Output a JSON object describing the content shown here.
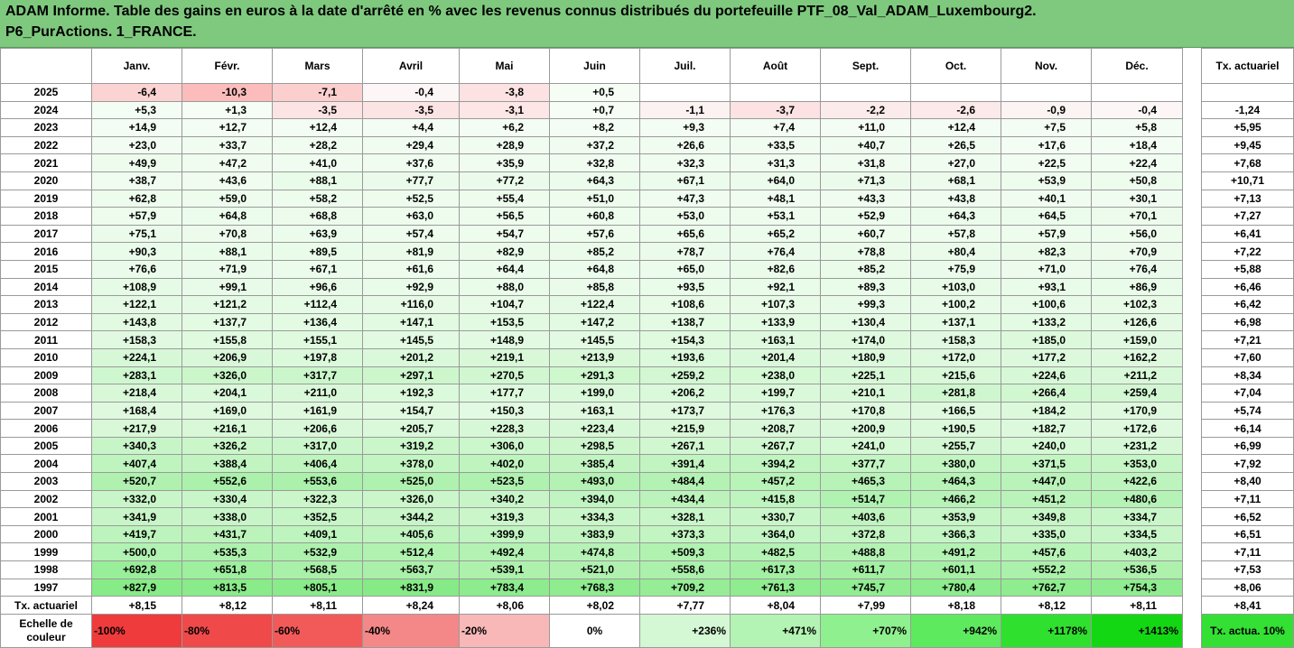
{
  "title": {
    "line1": "ADAM Informe. Table des gains en euros à la date d'arrêté en % avec les revenus connus distribués du portefeuille PTF_08_Val_ADAM_Luxembourg2.",
    "line2": "P6_PurActions. 1_FRANCE."
  },
  "months": [
    "Janv.",
    "Févr.",
    "Mars",
    "Avril",
    "Mai",
    "Juin",
    "Juil.",
    "Août",
    "Sept.",
    "Oct.",
    "Nov.",
    "Déc."
  ],
  "right_header": "Tx. actuariel",
  "rows": [
    {
      "year": "2025",
      "v": [
        "-6,4",
        "-10,3",
        "-7,1",
        "-0,4",
        "-3,8",
        "+0,5",
        "",
        "",
        "",
        "",
        "",
        ""
      ],
      "tx": ""
    },
    {
      "year": "2024",
      "v": [
        "+5,3",
        "+1,3",
        "-3,5",
        "-3,5",
        "-3,1",
        "+0,7",
        "-1,1",
        "-3,7",
        "-2,2",
        "-2,6",
        "-0,9",
        "-0,4"
      ],
      "tx": "-1,24"
    },
    {
      "year": "2023",
      "v": [
        "+14,9",
        "+12,7",
        "+12,4",
        "+4,4",
        "+6,2",
        "+8,2",
        "+9,3",
        "+7,4",
        "+11,0",
        "+12,4",
        "+7,5",
        "+5,8"
      ],
      "tx": "+5,95"
    },
    {
      "year": "2022",
      "v": [
        "+23,0",
        "+33,7",
        "+28,2",
        "+29,4",
        "+28,9",
        "+37,2",
        "+26,6",
        "+33,5",
        "+40,7",
        "+26,5",
        "+17,6",
        "+18,4"
      ],
      "tx": "+9,45"
    },
    {
      "year": "2021",
      "v": [
        "+49,9",
        "+47,2",
        "+41,0",
        "+37,6",
        "+35,9",
        "+32,8",
        "+32,3",
        "+31,3",
        "+31,8",
        "+27,0",
        "+22,5",
        "+22,4"
      ],
      "tx": "+7,68"
    },
    {
      "year": "2020",
      "v": [
        "+38,7",
        "+43,6",
        "+88,1",
        "+77,7",
        "+77,2",
        "+64,3",
        "+67,1",
        "+64,0",
        "+71,3",
        "+68,1",
        "+53,9",
        "+50,8"
      ],
      "tx": "+10,71"
    },
    {
      "year": "2019",
      "v": [
        "+62,8",
        "+59,0",
        "+58,2",
        "+52,5",
        "+55,4",
        "+51,0",
        "+47,3",
        "+48,1",
        "+43,3",
        "+43,8",
        "+40,1",
        "+30,1"
      ],
      "tx": "+7,13"
    },
    {
      "year": "2018",
      "v": [
        "+57,9",
        "+64,8",
        "+68,8",
        "+63,0",
        "+56,5",
        "+60,8",
        "+53,0",
        "+53,1",
        "+52,9",
        "+64,3",
        "+64,5",
        "+70,1"
      ],
      "tx": "+7,27"
    },
    {
      "year": "2017",
      "v": [
        "+75,1",
        "+70,8",
        "+63,9",
        "+57,4",
        "+54,7",
        "+57,6",
        "+65,6",
        "+65,2",
        "+60,7",
        "+57,8",
        "+57,9",
        "+56,0"
      ],
      "tx": "+6,41"
    },
    {
      "year": "2016",
      "v": [
        "+90,3",
        "+88,1",
        "+89,5",
        "+81,9",
        "+82,9",
        "+85,2",
        "+78,7",
        "+76,4",
        "+78,8",
        "+80,4",
        "+82,3",
        "+70,9"
      ],
      "tx": "+7,22"
    },
    {
      "year": "2015",
      "v": [
        "+76,6",
        "+71,9",
        "+67,1",
        "+61,6",
        "+64,4",
        "+64,8",
        "+65,0",
        "+82,6",
        "+85,2",
        "+75,9",
        "+71,0",
        "+76,4"
      ],
      "tx": "+5,88"
    },
    {
      "year": "2014",
      "v": [
        "+108,9",
        "+99,1",
        "+96,6",
        "+92,9",
        "+88,0",
        "+85,8",
        "+93,5",
        "+92,1",
        "+89,3",
        "+103,0",
        "+93,1",
        "+86,9"
      ],
      "tx": "+6,46"
    },
    {
      "year": "2013",
      "v": [
        "+122,1",
        "+121,2",
        "+112,4",
        "+116,0",
        "+104,7",
        "+122,4",
        "+108,6",
        "+107,3",
        "+99,3",
        "+100,2",
        "+100,6",
        "+102,3"
      ],
      "tx": "+6,42"
    },
    {
      "year": "2012",
      "v": [
        "+143,8",
        "+137,7",
        "+136,4",
        "+147,1",
        "+153,5",
        "+147,2",
        "+138,7",
        "+133,9",
        "+130,4",
        "+137,1",
        "+133,2",
        "+126,6"
      ],
      "tx": "+6,98"
    },
    {
      "year": "2011",
      "v": [
        "+158,3",
        "+155,8",
        "+155,1",
        "+145,5",
        "+148,9",
        "+145,5",
        "+154,3",
        "+163,1",
        "+174,0",
        "+158,3",
        "+185,0",
        "+159,0"
      ],
      "tx": "+7,21"
    },
    {
      "year": "2010",
      "v": [
        "+224,1",
        "+206,9",
        "+197,8",
        "+201,2",
        "+219,1",
        "+213,9",
        "+193,6",
        "+201,4",
        "+180,9",
        "+172,0",
        "+177,2",
        "+162,2"
      ],
      "tx": "+7,60"
    },
    {
      "year": "2009",
      "v": [
        "+283,1",
        "+326,0",
        "+317,7",
        "+297,1",
        "+270,5",
        "+291,3",
        "+259,2",
        "+238,0",
        "+225,1",
        "+215,6",
        "+224,6",
        "+211,2"
      ],
      "tx": "+8,34"
    },
    {
      "year": "2008",
      "v": [
        "+218,4",
        "+204,1",
        "+211,0",
        "+192,3",
        "+177,7",
        "+199,0",
        "+206,2",
        "+199,7",
        "+210,1",
        "+281,8",
        "+266,4",
        "+259,4"
      ],
      "tx": "+7,04"
    },
    {
      "year": "2007",
      "v": [
        "+168,4",
        "+169,0",
        "+161,9",
        "+154,7",
        "+150,3",
        "+163,1",
        "+173,7",
        "+176,3",
        "+170,8",
        "+166,5",
        "+184,2",
        "+170,9"
      ],
      "tx": "+5,74"
    },
    {
      "year": "2006",
      "v": [
        "+217,9",
        "+216,1",
        "+206,6",
        "+205,7",
        "+228,3",
        "+223,4",
        "+215,9",
        "+208,7",
        "+200,9",
        "+190,5",
        "+182,7",
        "+172,6"
      ],
      "tx": "+6,14"
    },
    {
      "year": "2005",
      "v": [
        "+340,3",
        "+326,2",
        "+317,0",
        "+319,2",
        "+306,0",
        "+298,5",
        "+267,1",
        "+267,7",
        "+241,0",
        "+255,7",
        "+240,0",
        "+231,2"
      ],
      "tx": "+6,99"
    },
    {
      "year": "2004",
      "v": [
        "+407,4",
        "+388,4",
        "+406,4",
        "+378,0",
        "+402,0",
        "+385,4",
        "+391,4",
        "+394,2",
        "+377,7",
        "+380,0",
        "+371,5",
        "+353,0"
      ],
      "tx": "+7,92"
    },
    {
      "year": "2003",
      "v": [
        "+520,7",
        "+552,6",
        "+553,6",
        "+525,0",
        "+523,5",
        "+493,0",
        "+484,4",
        "+457,2",
        "+465,3",
        "+464,3",
        "+447,0",
        "+422,6"
      ],
      "tx": "+8,40"
    },
    {
      "year": "2002",
      "v": [
        "+332,0",
        "+330,4",
        "+322,3",
        "+326,0",
        "+340,2",
        "+394,0",
        "+434,4",
        "+415,8",
        "+514,7",
        "+466,2",
        "+451,2",
        "+480,6"
      ],
      "tx": "+7,11"
    },
    {
      "year": "2001",
      "v": [
        "+341,9",
        "+338,0",
        "+352,5",
        "+344,2",
        "+319,3",
        "+334,3",
        "+328,1",
        "+330,7",
        "+403,6",
        "+353,9",
        "+349,8",
        "+334,7"
      ],
      "tx": "+6,52"
    },
    {
      "year": "2000",
      "v": [
        "+419,7",
        "+431,7",
        "+409,1",
        "+405,6",
        "+399,9",
        "+383,9",
        "+373,3",
        "+364,0",
        "+372,8",
        "+366,3",
        "+335,0",
        "+334,5"
      ],
      "tx": "+6,51"
    },
    {
      "year": "1999",
      "v": [
        "+500,0",
        "+535,3",
        "+532,9",
        "+512,4",
        "+492,4",
        "+474,8",
        "+509,3",
        "+482,5",
        "+488,8",
        "+491,2",
        "+457,6",
        "+403,2"
      ],
      "tx": "+7,11"
    },
    {
      "year": "1998",
      "v": [
        "+692,8",
        "+651,8",
        "+568,5",
        "+563,7",
        "+539,1",
        "+521,0",
        "+558,6",
        "+617,3",
        "+611,7",
        "+601,1",
        "+552,2",
        "+536,5"
      ],
      "tx": "+7,53"
    },
    {
      "year": "1997",
      "v": [
        "+827,9",
        "+813,5",
        "+805,1",
        "+831,9",
        "+783,4",
        "+768,3",
        "+709,2",
        "+761,3",
        "+745,7",
        "+780,4",
        "+762,7",
        "+754,3"
      ],
      "tx": "+8,06"
    }
  ],
  "tx_row": {
    "label": "Tx. actuariel",
    "v": [
      "+8,15",
      "+8,12",
      "+8,11",
      "+8,24",
      "+8,06",
      "+8,02",
      "+7,77",
      "+8,04",
      "+7,99",
      "+8,18",
      "+8,12",
      "+8,11"
    ],
    "total": "+8,41"
  },
  "scale": {
    "label": "Echelle de couleur",
    "items": [
      {
        "text": "-100%",
        "color": "#ef3b3b",
        "align": "left"
      },
      {
        "text": "-80%",
        "color": "#f0494a",
        "align": "left"
      },
      {
        "text": "-60%",
        "color": "#f25a5a",
        "align": "left"
      },
      {
        "text": "-40%",
        "color": "#f48888",
        "align": "left"
      },
      {
        "text": "-20%",
        "color": "#f8b8b8",
        "align": "left"
      },
      {
        "text": "0%",
        "color": "#ffffff",
        "align": "center"
      },
      {
        "text": "+236%",
        "color": "#d4f7d4",
        "align": "right"
      },
      {
        "text": "+471%",
        "color": "#b3f3b3",
        "align": "right"
      },
      {
        "text": "+707%",
        "color": "#8ef08e",
        "align": "right"
      },
      {
        "text": "+942%",
        "color": "#5eea5e",
        "align": "right"
      },
      {
        "text": "+1178%",
        "color": "#2fe02f",
        "align": "right"
      },
      {
        "text": "+1413%",
        "color": "#14d714",
        "align": "right"
      }
    ],
    "right_text": "Tx. actua. 10%",
    "right_color": "#33e033"
  },
  "colors": {
    "title_bg": "#7ec97e",
    "neg": "#f9c4c4",
    "neg_light": "#fde8e8",
    "pos_max": "#7fe87f"
  }
}
